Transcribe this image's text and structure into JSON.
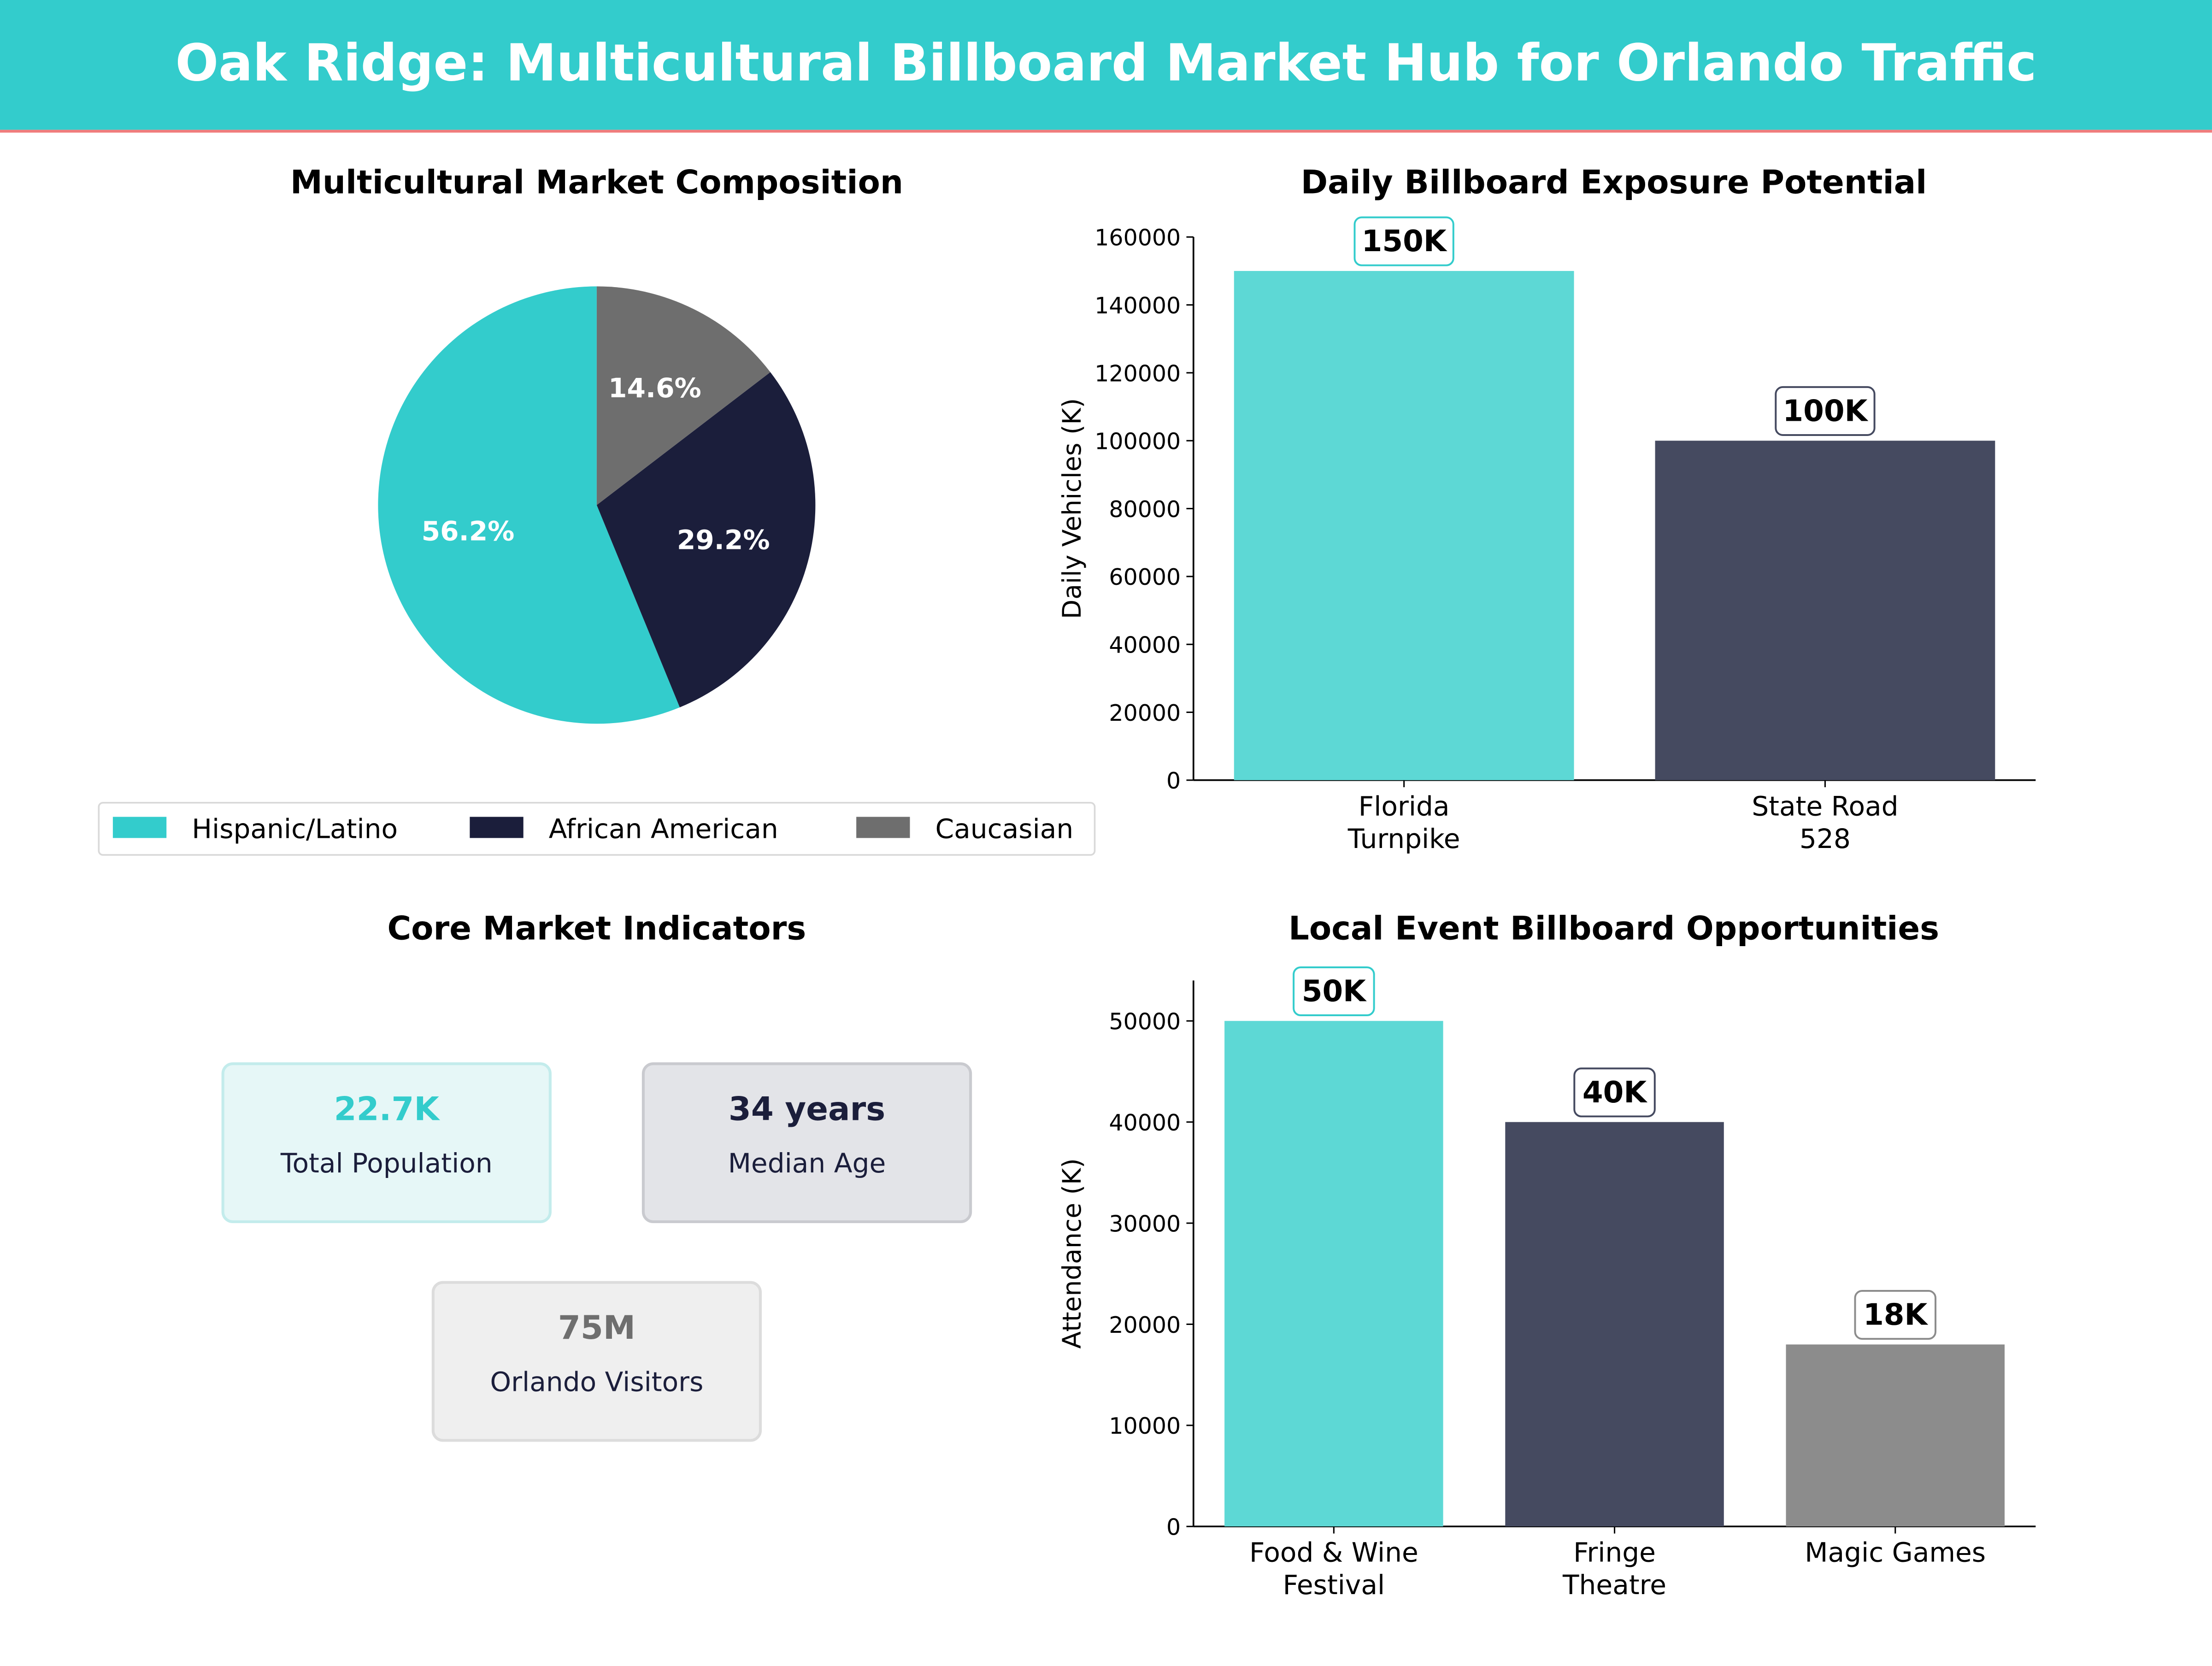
{
  "header": {
    "title": "Oak Ridge: Multicultural Billboard Market Hub for Orlando Traffic"
  },
  "colors": {
    "banner": "#33cccc",
    "banner_rule": "#f07c7c",
    "teal": "#33cccc",
    "teal_bar": "#5dd8d5",
    "navy": "#1b1e3b",
    "navy_bar": "#454a60",
    "gray": "#6e6e6e",
    "gray_bar": "#8c8c8c"
  },
  "chart_data": [
    {
      "type": "pie",
      "title": "Multicultural Market Composition",
      "slices": [
        {
          "label": "Hispanic/Latino",
          "value": 56.2,
          "display": "56.2%",
          "color": "#33cccc"
        },
        {
          "label": "African American",
          "value": 29.2,
          "display": "29.2%",
          "color": "#1b1e3b"
        },
        {
          "label": "Caucasian",
          "value": 14.6,
          "display": "14.6%",
          "color": "#6e6e6e"
        }
      ],
      "legend": "bottom"
    },
    {
      "type": "bar",
      "title": "Daily Billboard Exposure Potential",
      "categories": [
        [
          "Florida",
          "Turnpike"
        ],
        [
          "State Road",
          "528"
        ]
      ],
      "values": [
        150000,
        100000
      ],
      "value_labels": [
        "150K",
        "100K"
      ],
      "colors": [
        "#5dd8d5",
        "#454a60"
      ],
      "label_borders": [
        "#33cccc",
        "#454a60"
      ],
      "ylabel": "Daily Vehicles (K)",
      "ylim": [
        0,
        160000
      ],
      "yticks": [
        0,
        20000,
        40000,
        60000,
        80000,
        100000,
        120000,
        140000,
        160000
      ]
    },
    {
      "type": "table",
      "title": "Core Market Indicators",
      "kpis": [
        {
          "value": "22.7K",
          "label": "Total Population",
          "color": "#33cccc",
          "bg": "#e6f7f7",
          "border": "#c3ecec"
        },
        {
          "value": "34 years",
          "label": "Median Age",
          "color": "#1b1e3b",
          "bg": "#e3e4e8",
          "border": "#c9cacf"
        },
        {
          "value": "75M",
          "label": "Orlando Visitors",
          "color": "#6e6e6e",
          "bg": "#efefef",
          "border": "#dcdcdc"
        }
      ]
    },
    {
      "type": "bar",
      "title": "Local Event Billboard Opportunities",
      "categories": [
        [
          "Food & Wine",
          "Festival"
        ],
        [
          "Fringe",
          "Theatre"
        ],
        [
          "Magic Games"
        ]
      ],
      "values": [
        50000,
        40000,
        18000
      ],
      "value_labels": [
        "50K",
        "40K",
        "18K"
      ],
      "colors": [
        "#5dd8d5",
        "#454a60",
        "#8c8c8c"
      ],
      "label_borders": [
        "#33cccc",
        "#454a60",
        "#8c8c8c"
      ],
      "ylabel": "Attendance (K)",
      "ylim": [
        0,
        54000
      ],
      "yticks": [
        0,
        10000,
        20000,
        30000,
        40000,
        50000
      ]
    }
  ]
}
